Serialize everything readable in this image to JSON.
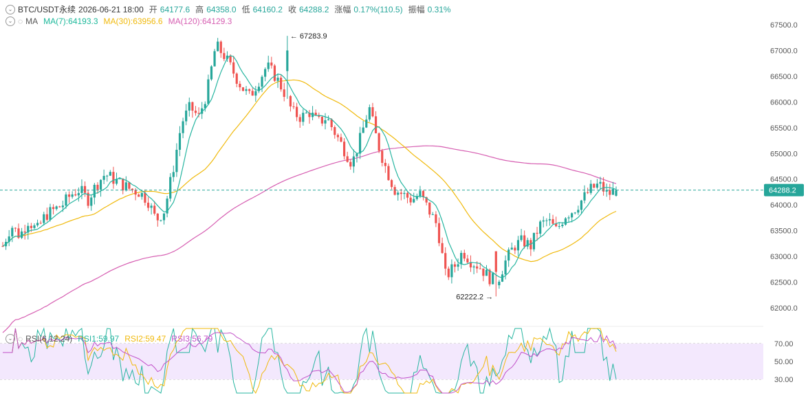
{
  "header": {
    "symbol": "BTC/USDT永续",
    "datetime": "2026-06-21 18:00",
    "open_label": "开",
    "open": "64177.6",
    "high_label": "高",
    "high": "64358.0",
    "low_label": "低",
    "low": "64160.2",
    "close_label": "收",
    "close": "64288.2",
    "change_label": "涨幅",
    "change": "0.17%(110.5)",
    "amp_label": "振幅",
    "amp": "0.31%"
  },
  "ma_legend": {
    "label": "MA",
    "ma7": "MA(7):64193.3",
    "ma30": "MA(30):63956.6",
    "ma120": "MA(120):64129.3"
  },
  "rsi_legend": {
    "label": "RSI(6,12,24)",
    "rsi1": "RSI1:59.97",
    "rsi2": "RSI2:59.47",
    "rsi3": "RSI3:56.79"
  },
  "price_axis": {
    "ticks": [
      "67500.0",
      "67000.0",
      "66500.0",
      "66000.0",
      "65500.0",
      "65000.0",
      "64500.0",
      "64000.0",
      "63500.0",
      "63000.0",
      "62500.0",
      "62000.0"
    ],
    "current": "64288.2",
    "max_price": 67500,
    "min_price": 62000
  },
  "annotations": {
    "high_mark": "67283.9",
    "low_mark": "62222.2"
  },
  "rsi_axis": {
    "ticks": [
      "70.00",
      "50.00",
      "30.00"
    ]
  },
  "colors": {
    "up": "#26a69a",
    "down": "#ef5350",
    "ma7": "#26b5a0",
    "ma30": "#f0b90b",
    "ma120": "#d65db1",
    "rsi_band": "#f3e8fd",
    "price_line": "#26a69a",
    "current_label_bg": "#26a69a"
  },
  "chart_data": {
    "type": "candlestick",
    "approx_closes": [
      63200,
      63600,
      63400,
      63700,
      63500,
      63800,
      63900,
      64000,
      64200,
      64300,
      64100,
      64400,
      64600,
      64500,
      64400,
      64300,
      64250,
      64100,
      63700,
      63900,
      64700,
      65600,
      65900,
      65700,
      66200,
      67100,
      66900,
      66600,
      66300,
      66100,
      66400,
      66700,
      66500,
      66200,
      65800,
      65700,
      65800,
      65600,
      65700,
      65400,
      65100,
      64800,
      65300,
      65900,
      65200,
      64700,
      64300,
      64200,
      64100,
      64200,
      63900,
      63600,
      62600,
      62800,
      63100,
      62900,
      62800,
      62600,
      62500,
      62900,
      63200,
      63300,
      63200,
      63600,
      63700,
      63500,
      63800,
      63900,
      64100,
      64300,
      64400,
      64200,
      64288
    ]
  }
}
